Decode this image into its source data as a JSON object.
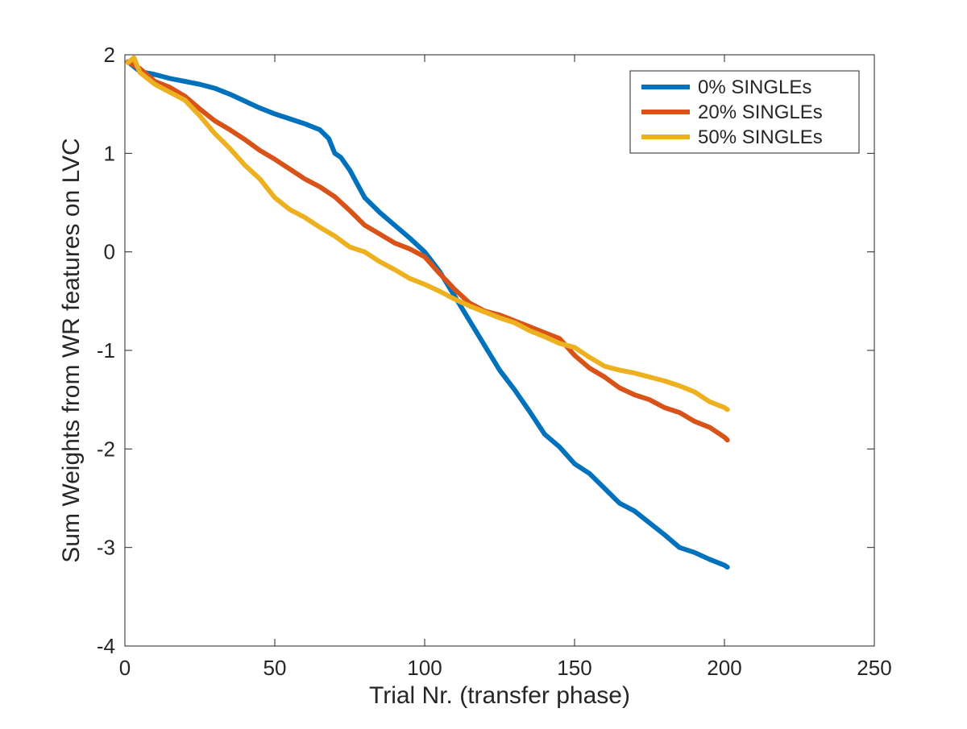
{
  "chart_data": {
    "type": "line",
    "title": "",
    "xlabel": "Trial Nr. (transfer phase)",
    "ylabel": "Sum Weights from WR features on LVC",
    "xlim": [
      0,
      250
    ],
    "ylim": [
      -4,
      2
    ],
    "x_ticks": [
      0,
      50,
      100,
      150,
      200,
      250
    ],
    "y_ticks": [
      -4,
      -3,
      -2,
      -1,
      0,
      1,
      2
    ],
    "x_tick_labels": [
      "0",
      "50",
      "100",
      "150",
      "200",
      "250"
    ],
    "y_tick_labels": [
      "-4",
      "-3",
      "-2",
      "-1",
      "0",
      "1",
      "2"
    ],
    "grid": false,
    "legend_position": "top-right",
    "series": [
      {
        "name": "0% SINGLEs",
        "color": "#0072BD",
        "x": [
          1,
          5,
          10,
          15,
          20,
          25,
          30,
          35,
          40,
          45,
          50,
          55,
          60,
          65,
          68,
          70,
          72,
          75,
          80,
          85,
          90,
          95,
          100,
          105,
          110,
          115,
          120,
          125,
          130,
          135,
          140,
          145,
          150,
          155,
          160,
          165,
          170,
          175,
          180,
          185,
          190,
          195,
          200,
          201
        ],
        "y": [
          1.93,
          1.83,
          1.8,
          1.76,
          1.73,
          1.7,
          1.66,
          1.6,
          1.53,
          1.46,
          1.4,
          1.35,
          1.3,
          1.24,
          1.15,
          1.0,
          0.96,
          0.83,
          0.55,
          0.4,
          0.27,
          0.14,
          0.0,
          -0.2,
          -0.45,
          -0.7,
          -0.95,
          -1.2,
          -1.4,
          -1.62,
          -1.85,
          -1.98,
          -2.15,
          -2.25,
          -2.4,
          -2.55,
          -2.63,
          -2.75,
          -2.87,
          -3.0,
          -3.05,
          -3.12,
          -3.18,
          -3.2
        ]
      },
      {
        "name": "20% SINGLEs",
        "color": "#D95319",
        "x": [
          1,
          5,
          10,
          15,
          20,
          25,
          30,
          35,
          40,
          45,
          50,
          55,
          60,
          65,
          70,
          75,
          80,
          85,
          90,
          95,
          100,
          105,
          110,
          115,
          120,
          125,
          130,
          135,
          140,
          145,
          150,
          155,
          160,
          165,
          170,
          175,
          180,
          185,
          190,
          195,
          200,
          201
        ],
        "y": [
          1.93,
          1.86,
          1.73,
          1.67,
          1.58,
          1.45,
          1.33,
          1.24,
          1.14,
          1.03,
          0.94,
          0.84,
          0.74,
          0.66,
          0.56,
          0.42,
          0.27,
          0.18,
          0.09,
          0.03,
          -0.05,
          -0.22,
          -0.38,
          -0.52,
          -0.6,
          -0.64,
          -0.7,
          -0.76,
          -0.82,
          -0.88,
          -1.05,
          -1.18,
          -1.27,
          -1.38,
          -1.45,
          -1.5,
          -1.58,
          -1.63,
          -1.72,
          -1.78,
          -1.88,
          -1.91
        ]
      },
      {
        "name": "50% SINGLEs",
        "color": "#EDB120",
        "x": [
          1,
          3,
          5,
          10,
          15,
          20,
          25,
          30,
          35,
          40,
          45,
          50,
          55,
          60,
          65,
          70,
          75,
          80,
          85,
          90,
          95,
          100,
          105,
          110,
          115,
          120,
          125,
          130,
          135,
          140,
          145,
          150,
          155,
          160,
          165,
          170,
          175,
          180,
          185,
          190,
          195,
          200,
          201
        ],
        "y": [
          1.92,
          1.97,
          1.82,
          1.7,
          1.62,
          1.54,
          1.38,
          1.2,
          1.05,
          0.88,
          0.74,
          0.55,
          0.43,
          0.35,
          0.25,
          0.16,
          0.05,
          0.0,
          -0.1,
          -0.18,
          -0.27,
          -0.33,
          -0.4,
          -0.48,
          -0.55,
          -0.61,
          -0.67,
          -0.72,
          -0.8,
          -0.86,
          -0.93,
          -0.97,
          -1.07,
          -1.16,
          -1.2,
          -1.23,
          -1.27,
          -1.31,
          -1.36,
          -1.42,
          -1.52,
          -1.58,
          -1.6
        ]
      }
    ]
  }
}
